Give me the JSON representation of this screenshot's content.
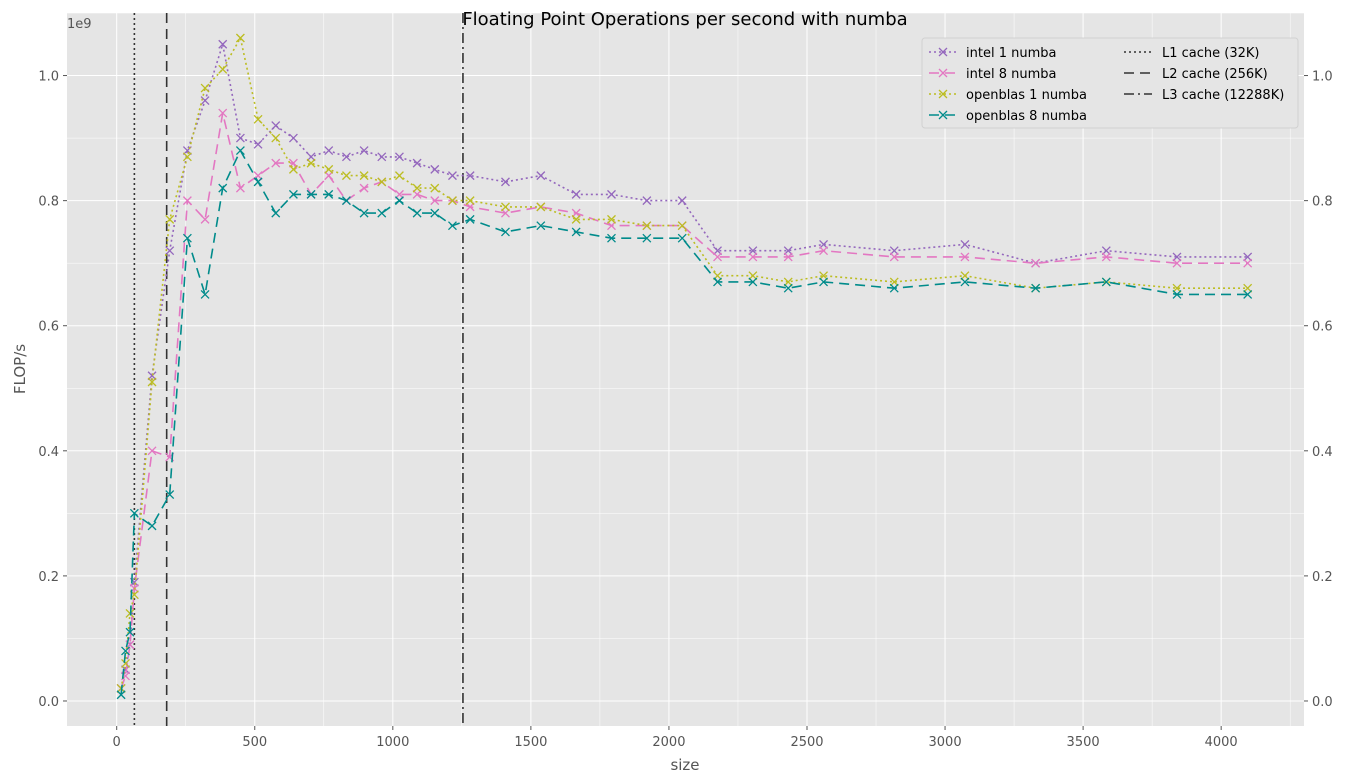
{
  "chart_data": {
    "type": "line",
    "title": "Floating Point Operations per second with numba",
    "xlabel": "size",
    "ylabel": "FLOP/s",
    "y_scale_label": "1e9",
    "xlim": [
      -180,
      4300
    ],
    "ylim": [
      -0.04,
      1.1
    ],
    "xticks": [
      0,
      500,
      1000,
      1500,
      2000,
      2500,
      3000,
      3500,
      4000
    ],
    "yticks": [
      0.0,
      0.2,
      0.4,
      0.6,
      0.8,
      1.0
    ],
    "grid": true,
    "legend_position": "top-right",
    "series": [
      {
        "name": "intel 1 numba",
        "color": "#9467bd",
        "linestyle": "dotted",
        "x": [
          16,
          32,
          48,
          64,
          128,
          192,
          256,
          320,
          384,
          448,
          512,
          576,
          640,
          704,
          768,
          832,
          896,
          960,
          1024,
          1088,
          1152,
          1216,
          1280,
          1408,
          1536,
          1664,
          1792,
          1920,
          2048,
          2176,
          2304,
          2432,
          2560,
          2816,
          3072,
          3328,
          3584,
          3840,
          4096
        ],
        "values": [
          0.02,
          0.05,
          0.09,
          0.19,
          0.52,
          0.72,
          0.88,
          0.96,
          1.05,
          0.9,
          0.89,
          0.92,
          0.9,
          0.87,
          0.88,
          0.87,
          0.88,
          0.87,
          0.87,
          0.86,
          0.85,
          0.84,
          0.84,
          0.83,
          0.84,
          0.81,
          0.81,
          0.8,
          0.8,
          0.72,
          0.72,
          0.72,
          0.73,
          0.72,
          0.73,
          0.7,
          0.72,
          0.71,
          0.71
        ]
      },
      {
        "name": "intel 8 numba",
        "color": "#e377c2",
        "linestyle": "dashed",
        "x": [
          16,
          32,
          48,
          64,
          128,
          192,
          256,
          320,
          384,
          448,
          512,
          576,
          640,
          704,
          768,
          832,
          896,
          960,
          1024,
          1088,
          1152,
          1216,
          1280,
          1408,
          1536,
          1664,
          1792,
          1920,
          2048,
          2176,
          2304,
          2432,
          2560,
          2816,
          3072,
          3328,
          3584,
          3840,
          4096
        ],
        "values": [
          0.02,
          0.04,
          0.09,
          0.18,
          0.4,
          0.39,
          0.8,
          0.77,
          0.94,
          0.82,
          0.84,
          0.86,
          0.86,
          0.81,
          0.84,
          0.8,
          0.82,
          0.83,
          0.81,
          0.81,
          0.8,
          0.8,
          0.79,
          0.78,
          0.79,
          0.78,
          0.76,
          0.76,
          0.76,
          0.71,
          0.71,
          0.71,
          0.72,
          0.71,
          0.71,
          0.7,
          0.71,
          0.7,
          0.7
        ]
      },
      {
        "name": "openblas 1 numba",
        "color": "#bcbd22",
        "linestyle": "dotted",
        "x": [
          16,
          32,
          48,
          64,
          128,
          192,
          256,
          320,
          384,
          448,
          512,
          576,
          640,
          704,
          768,
          832,
          896,
          960,
          1024,
          1088,
          1152,
          1216,
          1280,
          1408,
          1536,
          1664,
          1792,
          1920,
          2048,
          2176,
          2304,
          2432,
          2560,
          2816,
          3072,
          3328,
          3584,
          3840,
          4096
        ],
        "values": [
          0.02,
          0.06,
          0.14,
          0.17,
          0.51,
          0.77,
          0.87,
          0.98,
          1.01,
          1.06,
          0.93,
          0.9,
          0.85,
          0.86,
          0.85,
          0.84,
          0.84,
          0.83,
          0.84,
          0.82,
          0.82,
          0.8,
          0.8,
          0.79,
          0.79,
          0.77,
          0.77,
          0.76,
          0.76,
          0.68,
          0.68,
          0.67,
          0.68,
          0.67,
          0.68,
          0.66,
          0.67,
          0.66,
          0.66
        ]
      },
      {
        "name": "openblas 8 numba",
        "color": "#008b8b",
        "linestyle": "dashed",
        "x": [
          16,
          32,
          48,
          64,
          128,
          192,
          256,
          320,
          384,
          448,
          512,
          576,
          640,
          704,
          768,
          832,
          896,
          960,
          1024,
          1088,
          1152,
          1216,
          1280,
          1408,
          1536,
          1664,
          1792,
          1920,
          2048,
          2176,
          2304,
          2432,
          2560,
          2816,
          3072,
          3328,
          3584,
          3840,
          4096
        ],
        "values": [
          0.01,
          0.08,
          0.11,
          0.3,
          0.28,
          0.33,
          0.74,
          0.65,
          0.82,
          0.88,
          0.83,
          0.78,
          0.81,
          0.81,
          0.81,
          0.8,
          0.78,
          0.78,
          0.8,
          0.78,
          0.78,
          0.76,
          0.77,
          0.75,
          0.76,
          0.75,
          0.74,
          0.74,
          0.74,
          0.67,
          0.67,
          0.66,
          0.67,
          0.66,
          0.67,
          0.66,
          0.67,
          0.65,
          0.65
        ]
      }
    ],
    "vlines": [
      {
        "name": "L1 cache (32K)",
        "x": 64,
        "linestyle": "dotted",
        "color": "#333333"
      },
      {
        "name": "L2 cache (256K)",
        "x": 181,
        "linestyle": "dashed",
        "color": "#333333"
      },
      {
        "name": "L3 cache (12288K)",
        "x": 1254,
        "linestyle": "dashdot",
        "color": "#333333"
      }
    ]
  }
}
